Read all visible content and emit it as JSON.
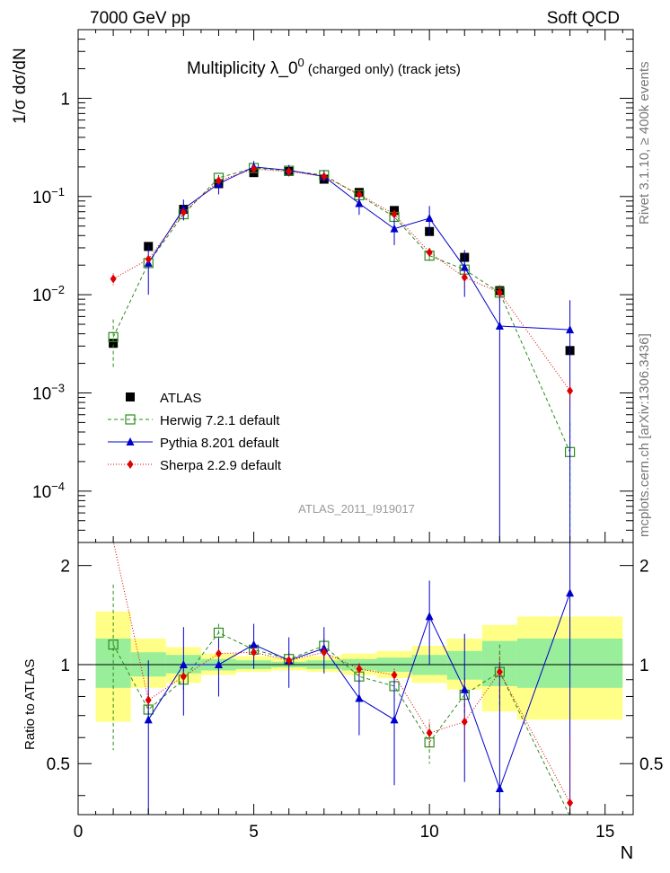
{
  "header": {
    "left": "7000 GeV pp",
    "right": "Soft QCD"
  },
  "side_texts": {
    "rivet": "Rivet 3.1.10, ≥ 400k events",
    "mcplots": "mcplots.cern.ch [arXiv:1306.3436]"
  },
  "chart_data": {
    "type": "scatter",
    "title_main": "Multiplicity  λ_0",
    "title_sup": "0",
    "title_rest": "(charged only) (track jets)",
    "watermark": "ATLAS_2011_I919017",
    "ylabel": "1/σ dσ/dN",
    "ratio_ylabel": "Ratio to ATLAS",
    "xlabel": "N",
    "xlim": [
      0,
      15.8
    ],
    "ylim_log": [
      3e-05,
      5
    ],
    "ratio_ylim": [
      0.35,
      2.35
    ],
    "x_ticks": [
      "0",
      "5",
      "10",
      "15"
    ],
    "y_ticks": [
      "10^-4",
      "10^-3",
      "10^-2",
      "10^-1",
      "1"
    ],
    "ratio_ticks": [
      "0.5",
      "1",
      "2"
    ],
    "series": [
      {
        "name": "ATLAS",
        "color": "#000000",
        "marker": "square-filled",
        "x": [
          1,
          2,
          3,
          4,
          5,
          6,
          7,
          8,
          9,
          10,
          11,
          12,
          14
        ],
        "y": [
          0.0032,
          0.031,
          0.074,
          0.135,
          0.175,
          0.18,
          0.15,
          0.11,
          0.072,
          0.044,
          0.024,
          0.011,
          0.0027
        ]
      },
      {
        "name": "Herwig 7.2.1 default",
        "color": "#2e8b1e",
        "marker": "square-open",
        "dash": "4,3",
        "x": [
          1,
          2,
          3,
          4,
          5,
          6,
          7,
          8,
          9,
          10,
          11,
          12,
          14
        ],
        "y": [
          0.0037,
          0.021,
          0.066,
          0.155,
          0.195,
          0.183,
          0.165,
          0.103,
          0.062,
          0.025,
          0.018,
          0.0105,
          0.00025
        ],
        "err_lo": [
          0.0019,
          0.002,
          0.005,
          0.008,
          0.008,
          0.008,
          0.008,
          0.006,
          0.005,
          0.003,
          0.003,
          0.002,
          0.00025
        ],
        "err_hi": [
          0.0019,
          0.002,
          0.005,
          0.008,
          0.008,
          0.008,
          0.008,
          0.006,
          0.005,
          0.003,
          0.003,
          0.002,
          0.00025
        ],
        "ratio": [
          1.15,
          0.73,
          0.9,
          1.25,
          1.11,
          1.04,
          1.14,
          0.92,
          0.86,
          0.58,
          0.81,
          0.95,
          0.09
        ],
        "ratio_err": [
          0.6,
          0.06,
          0.08,
          0.08,
          0.05,
          0.05,
          0.06,
          0.06,
          0.08,
          0.08,
          0.1,
          0.2,
          0.1
        ]
      },
      {
        "name": "Pythia 8.201 default",
        "color": "#0000cc",
        "marker": "triangle",
        "dash": "",
        "x": [
          2,
          3,
          4,
          5,
          6,
          7,
          8,
          9,
          10,
          11,
          12,
          14
        ],
        "y": [
          0.021,
          0.075,
          0.135,
          0.2,
          0.185,
          0.16,
          0.085,
          0.047,
          0.06,
          0.019,
          0.0048,
          0.0044
        ],
        "err_lo": [
          0.011,
          0.018,
          0.03,
          0.03,
          0.025,
          0.025,
          0.02,
          0.015,
          0.02,
          0.0095,
          0.0048,
          0.0044
        ],
        "err_hi": [
          0.011,
          0.018,
          0.03,
          0.03,
          0.025,
          0.025,
          0.02,
          0.015,
          0.02,
          0.0095,
          0.0048,
          0.0044
        ],
        "ratio": [
          0.68,
          1.0,
          1.0,
          1.15,
          1.03,
          1.12,
          0.79,
          0.68,
          1.4,
          0.84,
          0.42,
          1.65
        ],
        "ratio_err": [
          0.35,
          0.3,
          0.2,
          0.18,
          0.18,
          0.18,
          0.18,
          0.25,
          0.4,
          0.4,
          0.6,
          1.6
        ]
      },
      {
        "name": "Sherpa 2.2.9 default",
        "color": "#dd0000",
        "marker": "diamond",
        "dash": "1,2",
        "x": [
          1,
          2,
          3,
          4,
          5,
          6,
          7,
          8,
          9,
          10,
          11,
          12,
          14
        ],
        "y": [
          0.0145,
          0.023,
          0.069,
          0.145,
          0.19,
          0.18,
          0.16,
          0.105,
          0.066,
          0.027,
          0.015,
          0.0105,
          0.00105
        ],
        "err_lo": [
          0.002,
          0.002,
          0.004,
          0.006,
          0.007,
          0.007,
          0.006,
          0.005,
          0.004,
          0.003,
          0.003,
          0.002,
          0.0003
        ],
        "err_hi": [
          0.002,
          0.002,
          0.004,
          0.006,
          0.007,
          0.007,
          0.006,
          0.005,
          0.004,
          0.003,
          0.003,
          0.002,
          0.0003
        ],
        "ratio": [
          4.5,
          0.78,
          0.92,
          1.08,
          1.09,
          1.03,
          1.09,
          0.97,
          0.93,
          0.62,
          0.67,
          0.95,
          0.38
        ],
        "ratio_err": [
          0.2,
          0.05,
          0.05,
          0.04,
          0.04,
          0.04,
          0.04,
          0.04,
          0.04,
          0.06,
          0.12,
          0.15,
          0.22
        ]
      }
    ],
    "ratio_bands": {
      "x_edges": [
        0.5,
        1.5,
        2.5,
        3.5,
        4.5,
        5.5,
        6.5,
        7.5,
        8.5,
        9.5,
        10.5,
        11.5,
        12.5,
        15.5
      ],
      "yellow_lo": [
        0.67,
        0.85,
        0.88,
        0.93,
        0.95,
        0.96,
        0.95,
        0.93,
        0.91,
        0.88,
        0.84,
        0.72,
        0.68
      ],
      "yellow_hi": [
        1.45,
        1.2,
        1.13,
        1.08,
        1.06,
        1.05,
        1.06,
        1.08,
        1.1,
        1.14,
        1.2,
        1.32,
        1.4
      ],
      "green_lo": [
        0.85,
        0.92,
        0.94,
        0.96,
        0.97,
        0.98,
        0.97,
        0.96,
        0.95,
        0.93,
        0.9,
        0.86,
        0.85
      ],
      "green_hi": [
        1.2,
        1.09,
        1.07,
        1.04,
        1.03,
        1.02,
        1.03,
        1.04,
        1.05,
        1.07,
        1.1,
        1.18,
        1.2
      ]
    }
  }
}
